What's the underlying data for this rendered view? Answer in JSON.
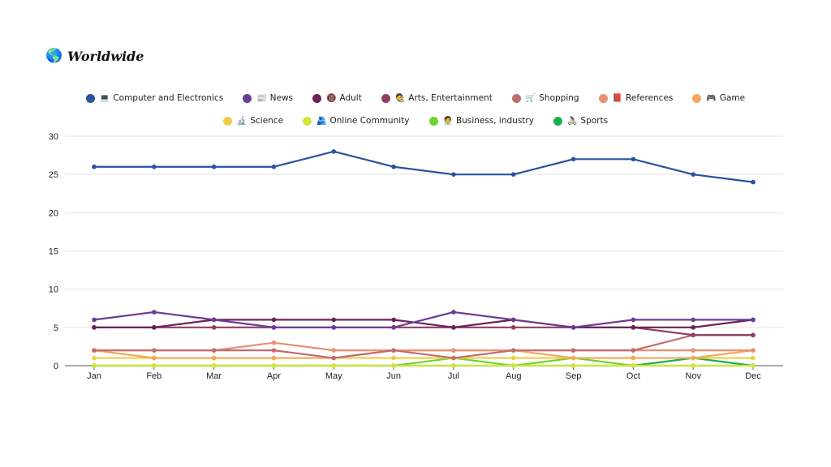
{
  "header": {
    "globe_icon": "🌎",
    "title": "Worldwide"
  },
  "colors": {
    "grid": "#e3e3e3",
    "axis": "#555555",
    "tick_text": "#222222"
  },
  "chart_data": {
    "type": "line",
    "title": "Worldwide",
    "xlabel": "",
    "ylabel": "",
    "ylim": [
      0,
      30
    ],
    "yticks": [
      0,
      5,
      10,
      15,
      20,
      25,
      30
    ],
    "grid": true,
    "legend_position": "top-center",
    "categories": [
      "Jan",
      "Feb",
      "Mar",
      "Apr",
      "May",
      "Jun",
      "Jul",
      "Aug",
      "Sep",
      "Oct",
      "Nov",
      "Dec"
    ],
    "series": [
      {
        "name": "Computer and Electronics",
        "icon": "💻",
        "color": "#2a52a0",
        "values": [
          26,
          26,
          26,
          26,
          28,
          26,
          25,
          25,
          27,
          27,
          25,
          24
        ]
      },
      {
        "name": "News",
        "icon": "📰",
        "color": "#6b3b96",
        "values": [
          6,
          7,
          6,
          5,
          5,
          5,
          7,
          6,
          5,
          6,
          6,
          6
        ]
      },
      {
        "name": "Adult",
        "icon": "🔞",
        "color": "#6a2158",
        "values": [
          5,
          5,
          6,
          6,
          6,
          6,
          5,
          6,
          5,
          5,
          5,
          6
        ]
      },
      {
        "name": "Arts, Entertainment",
        "icon": "🧑‍🎨",
        "color": "#8f3f62",
        "values": [
          5,
          5,
          5,
          5,
          5,
          5,
          5,
          5,
          5,
          5,
          4,
          4
        ]
      },
      {
        "name": "Shopping",
        "icon": "🛒",
        "color": "#c06c6e",
        "values": [
          2,
          2,
          2,
          2,
          1,
          2,
          1,
          2,
          2,
          2,
          4,
          4
        ]
      },
      {
        "name": "References",
        "icon": "📕",
        "color": "#e89070",
        "values": [
          2,
          2,
          2,
          3,
          2,
          2,
          2,
          2,
          2,
          2,
          2,
          2
        ]
      },
      {
        "name": "Game",
        "icon": "🎮",
        "color": "#f4a85a",
        "values": [
          2,
          1,
          1,
          1,
          1,
          2,
          2,
          2,
          1,
          1,
          1,
          2
        ]
      },
      {
        "name": "Science",
        "icon": "🔬",
        "color": "#f2cc47",
        "values": [
          1,
          1,
          1,
          1,
          1,
          1,
          1,
          1,
          1,
          1,
          1,
          1
        ]
      },
      {
        "name": "Online Community",
        "icon": "🫂",
        "color": "#d4e33a",
        "values": [
          0,
          0,
          0,
          0,
          0,
          0,
          0,
          0,
          0,
          0,
          0,
          0
        ]
      },
      {
        "name": "Business, industry",
        "icon": "🧑‍💼",
        "color": "#6ed42f",
        "values": [
          0,
          0,
          0,
          0,
          0,
          0,
          1,
          0,
          1,
          0,
          0,
          0
        ]
      },
      {
        "name": "Sports",
        "icon": "🚴‍♀️",
        "color": "#15b050",
        "values": [
          0,
          0,
          0,
          0,
          0,
          0,
          0,
          0,
          0,
          0,
          1,
          0
        ]
      }
    ]
  }
}
